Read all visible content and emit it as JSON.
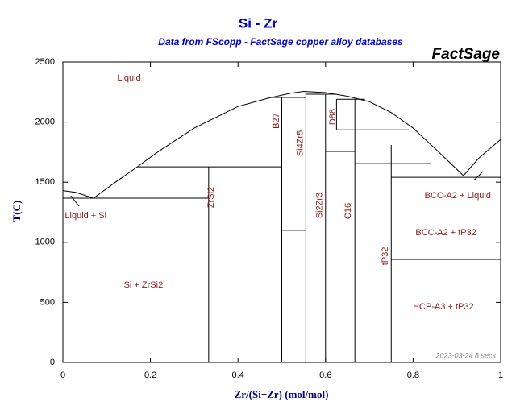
{
  "chart_data": {
    "type": "phase_diagram",
    "title": "Si - Zr",
    "subtitle": "Data from FScopp - FactSage copper alloy databases",
    "logo": "FactSage",
    "footnote": "2023-03-24  8 secs",
    "xlabel": "Zr/(Si+Zr) (mol/mol)",
    "ylabel": "T(C)",
    "xlim": [
      0,
      1
    ],
    "ylim": [
      0,
      2500
    ],
    "xticks": [
      0,
      0.2,
      0.4,
      0.6,
      0.8,
      1
    ],
    "yticks": [
      0,
      500,
      1000,
      1500,
      2000,
      2500
    ],
    "color": "#000000",
    "label_color": "#8b1a1a",
    "series": [
      {
        "x": [
          0,
          0.03,
          0.07,
          0.12,
          0.17,
          0.22,
          0.3,
          0.4,
          0.47,
          0.52,
          0.55,
          0.6,
          0.65,
          0.7,
          0.75,
          0.8,
          0.85,
          0.915,
          0.95,
          1
        ],
        "y": [
          1430,
          1415,
          1367,
          1500,
          1628,
          1760,
          1950,
          2130,
          2200,
          2240,
          2255,
          2245,
          2215,
          2170,
          2080,
          1950,
          1780,
          1555,
          1700,
          1856
        ]
      },
      {
        "x": [
          0.018,
          0.037
        ],
        "y": [
          1387,
          1300
        ]
      },
      {
        "x": [
          0,
          0.333
        ],
        "y": [
          1367,
          1367
        ]
      },
      {
        "x": [
          0.333,
          0.333
        ],
        "y": [
          0,
          1628
        ]
      },
      {
        "x": [
          0.17,
          0.5
        ],
        "y": [
          1628,
          1628
        ]
      },
      {
        "x": [
          0.5,
          0.5
        ],
        "y": [
          0,
          2205
        ]
      },
      {
        "x": [
          0.47,
          0.555
        ],
        "y": [
          2205,
          2205
        ]
      },
      {
        "x": [
          0.555,
          0.555
        ],
        "y": [
          0,
          2250
        ]
      },
      {
        "x": [
          0.5,
          0.555
        ],
        "y": [
          1100,
          1100
        ]
      },
      {
        "x": [
          0.6,
          0.6
        ],
        "y": [
          0,
          2232
        ]
      },
      {
        "x": [
          0.555,
          0.625
        ],
        "y": [
          2232,
          2232
        ]
      },
      {
        "x": [
          0.6,
          0.667
        ],
        "y": [
          1756,
          1756
        ]
      },
      {
        "x": [
          0.625,
          0.625
        ],
        "y": [
          1935,
          2190
        ]
      },
      {
        "x": [
          0.625,
          0.79
        ],
        "y": [
          1935,
          1935
        ]
      },
      {
        "x": [
          0.625,
          0.69
        ],
        "y": [
          2190,
          2190
        ]
      },
      {
        "x": [
          0.667,
          0.667
        ],
        "y": [
          0,
          2190
        ]
      },
      {
        "x": [
          0.667,
          0.84
        ],
        "y": [
          1655,
          1655
        ]
      },
      {
        "x": [
          0.75,
          0.75
        ],
        "y": [
          0,
          1810
        ]
      },
      {
        "x": [
          0.75,
          1
        ],
        "y": [
          1541,
          1541
        ]
      },
      {
        "x": [
          0.75,
          1
        ],
        "y": [
          858,
          858
        ]
      },
      {
        "x": [
          0.94,
          0.96
        ],
        "y": [
          1520,
          1590
        ]
      }
    ],
    "annotations": [
      {
        "text": "Liquid",
        "x": 0.151,
        "y": 2366,
        "rotate": 0
      },
      {
        "text": "Liquid + Si",
        "x": 0.052,
        "y": 1220,
        "rotate": 0
      },
      {
        "text": "Si + ZrSi2",
        "x": 0.184,
        "y": 643,
        "rotate": 0
      },
      {
        "text": "ZrSi2",
        "x": 0.339,
        "y": 1374,
        "rotate": -90
      },
      {
        "text": "B27",
        "x": 0.488,
        "y": 2010,
        "rotate": -90
      },
      {
        "text": "Si4Zr5",
        "x": 0.543,
        "y": 1823,
        "rotate": -90
      },
      {
        "text": "D88",
        "x": 0.617,
        "y": 2044,
        "rotate": -90
      },
      {
        "text": "Si2Zr3",
        "x": 0.587,
        "y": 1307,
        "rotate": -90
      },
      {
        "text": "C16",
        "x": 0.652,
        "y": 1260,
        "rotate": -90
      },
      {
        "text": "tP32",
        "x": 0.737,
        "y": 885,
        "rotate": -90
      },
      {
        "text": "BCC-A2 + Liquid",
        "x": 0.902,
        "y": 1387,
        "rotate": 0
      },
      {
        "text": "BCC-A2 + tP32",
        "x": 0.875,
        "y": 1079,
        "rotate": 0
      },
      {
        "text": "HCP-A3 + tP32",
        "x": 0.869,
        "y": 462,
        "rotate": 0
      }
    ]
  }
}
